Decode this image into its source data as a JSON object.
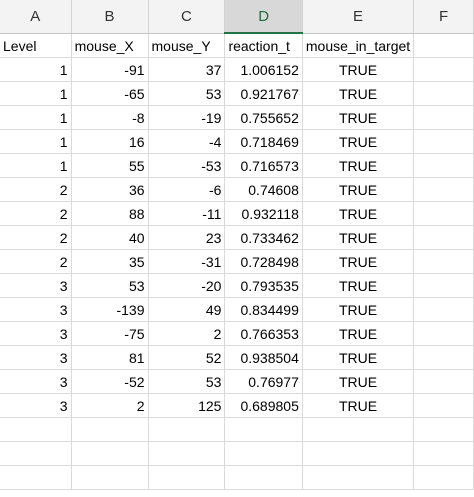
{
  "columns": [
    "A",
    "B",
    "C",
    "D",
    "E",
    "F"
  ],
  "selected_column": "D",
  "header_row": [
    "Level",
    "mouse_X",
    "mouse_Y",
    "reaction_t",
    "mouse_in_target",
    ""
  ],
  "rows": [
    [
      "1",
      "-91",
      "37",
      "1.006152",
      "TRUE"
    ],
    [
      "1",
      "-65",
      "53",
      "0.921767",
      "TRUE"
    ],
    [
      "1",
      "-8",
      "-19",
      "0.755652",
      "TRUE"
    ],
    [
      "1",
      "16",
      "-4",
      "0.718469",
      "TRUE"
    ],
    [
      "1",
      "55",
      "-53",
      "0.716573",
      "TRUE"
    ],
    [
      "2",
      "36",
      "-6",
      "0.74608",
      "TRUE"
    ],
    [
      "2",
      "88",
      "-11",
      "0.932118",
      "TRUE"
    ],
    [
      "2",
      "40",
      "23",
      "0.733462",
      "TRUE"
    ],
    [
      "2",
      "35",
      "-31",
      "0.728498",
      "TRUE"
    ],
    [
      "3",
      "53",
      "-20",
      "0.793535",
      "TRUE"
    ],
    [
      "3",
      "-139",
      "49",
      "0.834499",
      "TRUE"
    ],
    [
      "3",
      "-75",
      "2",
      "0.766353",
      "TRUE"
    ],
    [
      "3",
      "81",
      "52",
      "0.938504",
      "TRUE"
    ],
    [
      "3",
      "-52",
      "53",
      "0.76977",
      "TRUE"
    ],
    [
      "3",
      "2",
      "125",
      "0.689805",
      "TRUE"
    ]
  ],
  "empty_row_count": 3
}
